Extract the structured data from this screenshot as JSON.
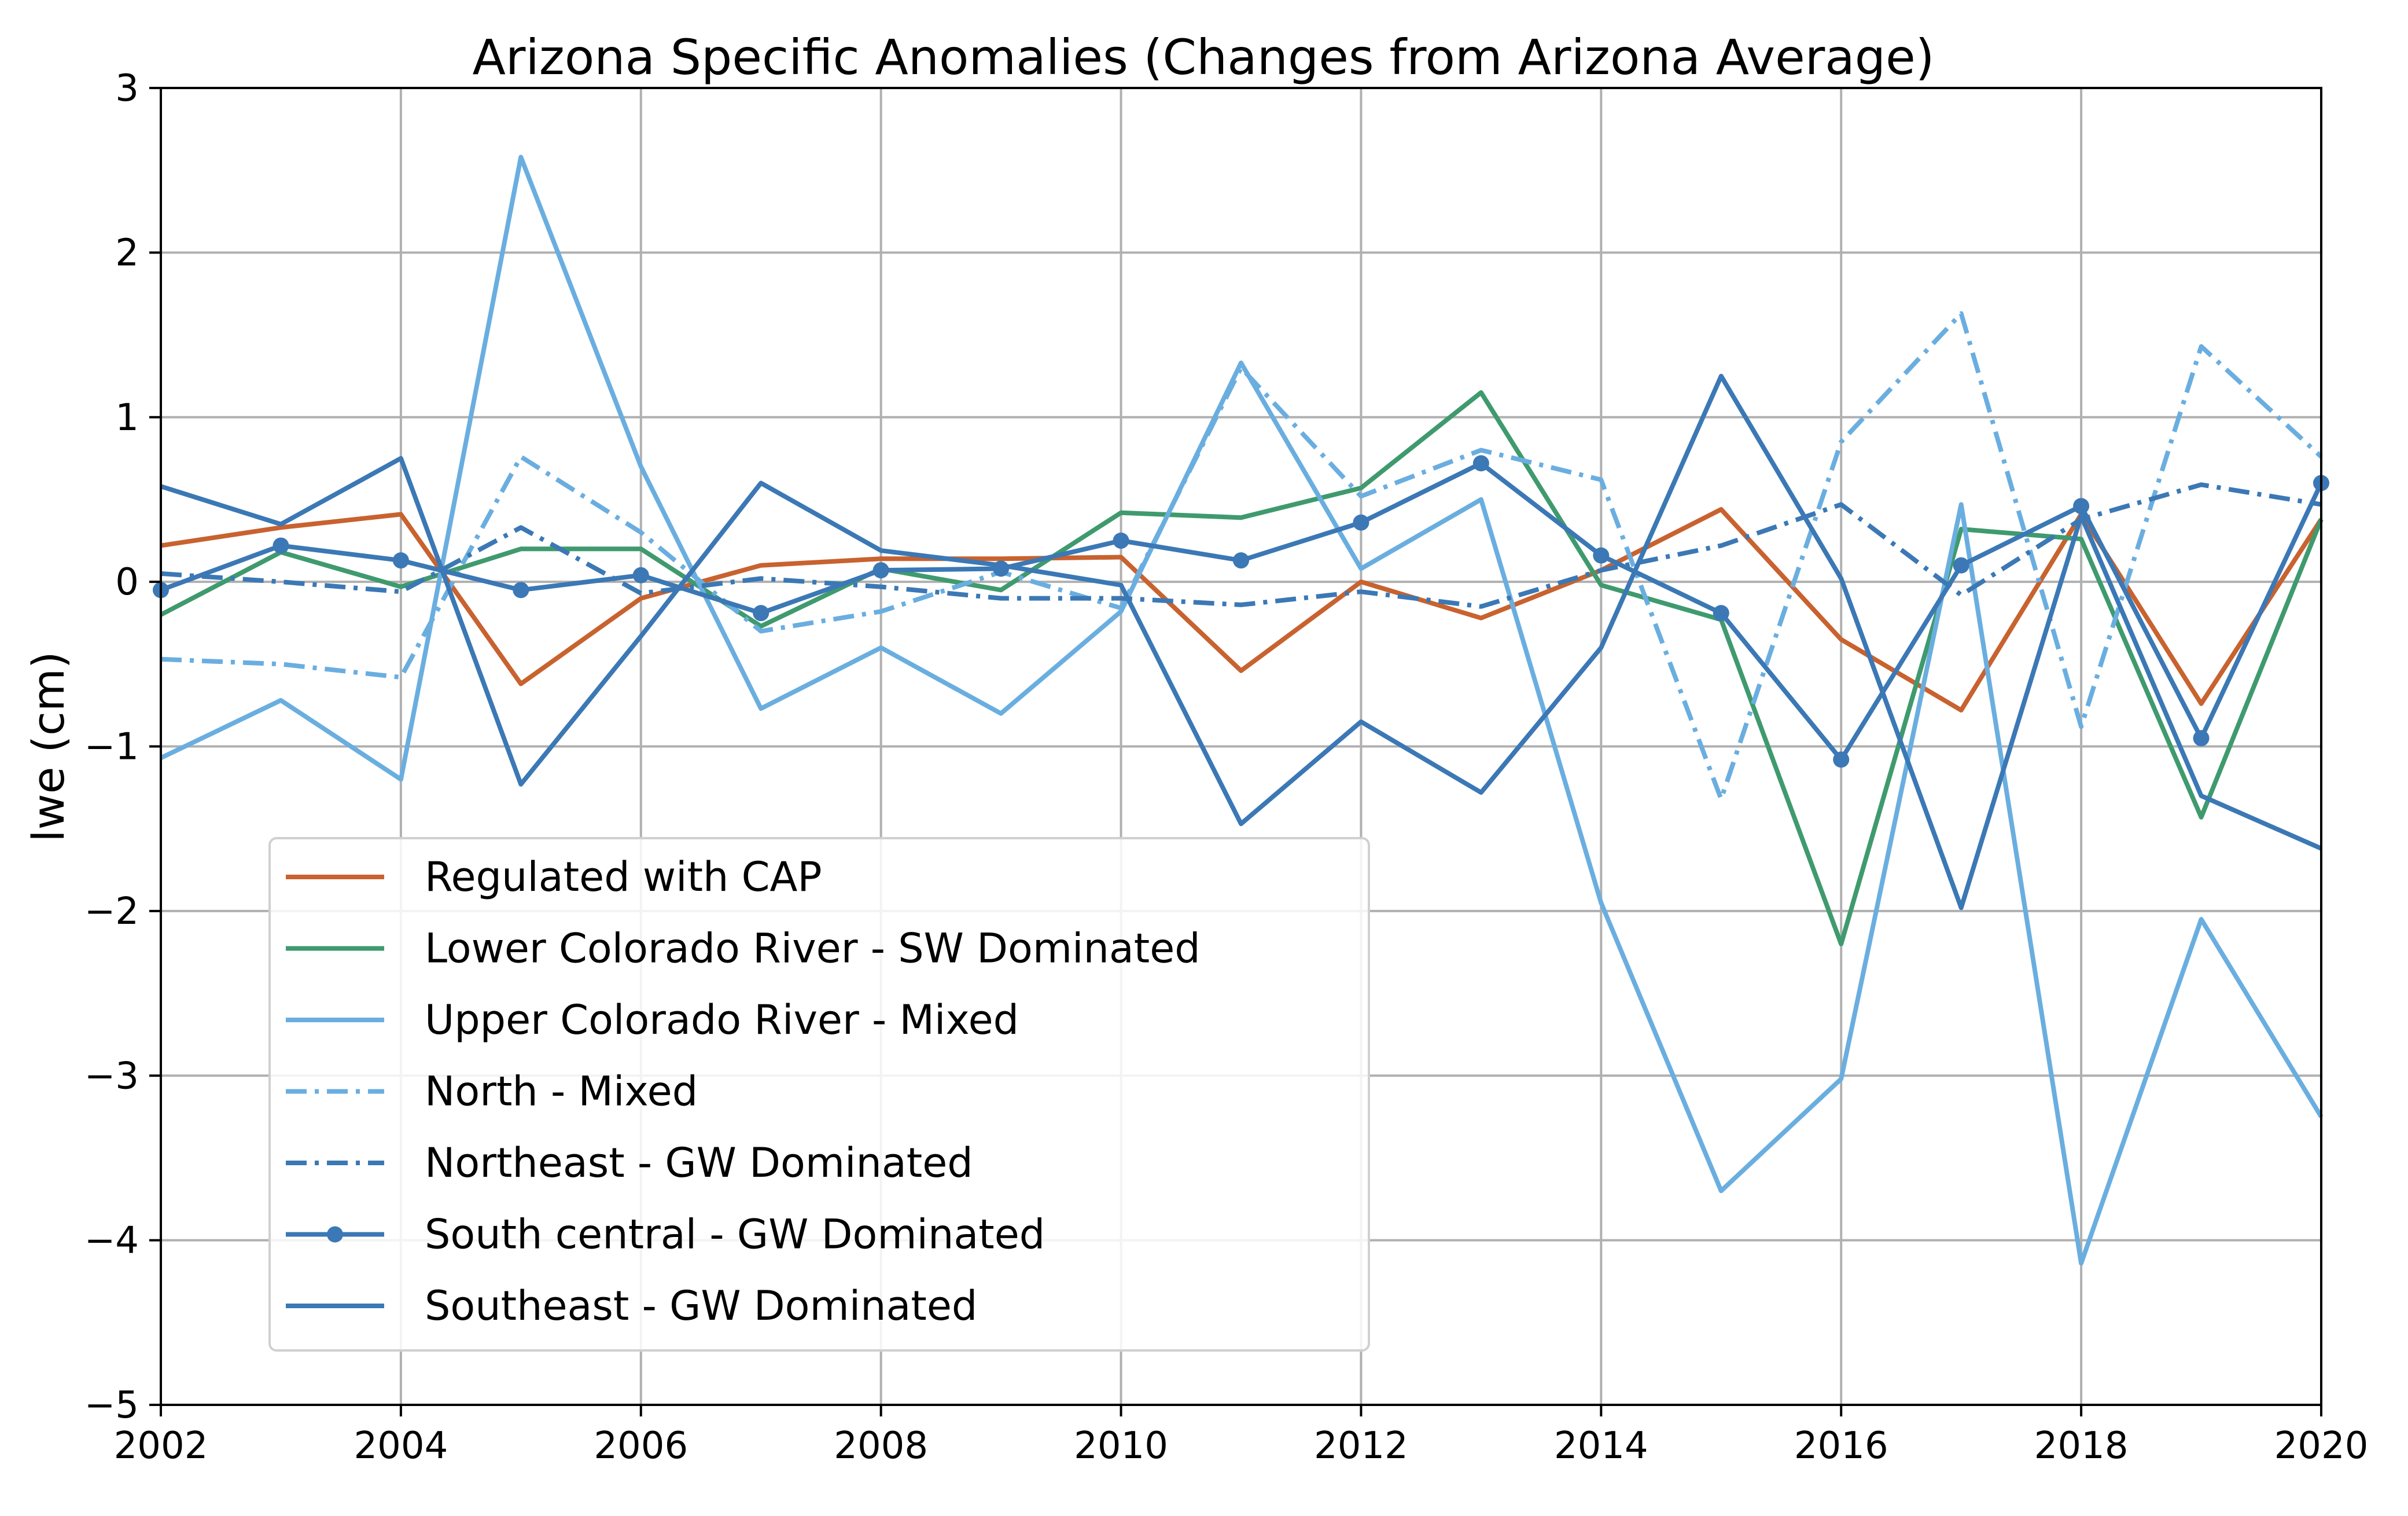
{
  "chart_data": {
    "type": "line",
    "title": "Arizona Specific Anomalies (Changes from Arizona Average)",
    "xlabel": "",
    "ylabel": "lwe (cm)",
    "xlim": [
      2002,
      2020
    ],
    "ylim": [
      -5,
      3
    ],
    "x_ticks": [
      2002,
      2004,
      2006,
      2008,
      2010,
      2012,
      2014,
      2016,
      2018,
      2020
    ],
    "x_tick_labels": [
      "2002",
      "2004",
      "2006",
      "2008",
      "2010",
      "2012",
      "2014",
      "2016",
      "2018",
      "2020"
    ],
    "y_ticks": [
      3,
      2,
      1,
      0,
      -1,
      -2,
      -3,
      -4,
      -5
    ],
    "y_tick_labels": [
      "3",
      "2",
      "1",
      "0",
      "−1",
      "−2",
      "−3",
      "−4",
      "−5"
    ],
    "grid": true,
    "legend_position": "lower-left",
    "x": [
      2002,
      2003,
      2004,
      2005,
      2006,
      2007,
      2008,
      2009,
      2010,
      2011,
      2012,
      2013,
      2014,
      2015,
      2016,
      2017,
      2018,
      2019,
      2020
    ],
    "series": [
      {
        "name": "Regulated with CAP",
        "color": "#c8622f",
        "style": "solid",
        "marker": false,
        "values": [
          0.22,
          0.33,
          0.41,
          -0.62,
          -0.1,
          0.1,
          0.14,
          0.14,
          0.15,
          -0.54,
          0.0,
          -0.22,
          0.07,
          0.44,
          -0.35,
          -0.78,
          0.41,
          -0.74,
          0.38
        ]
      },
      {
        "name": "Lower Colorado River - SW Dominated",
        "color": "#3f9a6e",
        "style": "solid",
        "marker": false,
        "values": [
          -0.2,
          0.18,
          -0.03,
          0.2,
          0.2,
          -0.27,
          0.08,
          -0.05,
          0.42,
          0.39,
          0.57,
          1.15,
          -0.02,
          -0.23,
          -2.2,
          0.32,
          0.26,
          -1.43,
          0.38
        ]
      },
      {
        "name": "Upper Colorado River - Mixed",
        "color": "#6aaee0",
        "style": "solid",
        "marker": false,
        "values": [
          -1.07,
          -0.72,
          -1.2,
          2.58,
          0.7,
          -0.77,
          -0.4,
          -0.8,
          -0.18,
          1.33,
          0.08,
          0.5,
          -1.95,
          -3.7,
          -3.02,
          0.47,
          -4.14,
          -2.05,
          -3.25
        ]
      },
      {
        "name": "North - Mixed",
        "color": "#6aaee0",
        "style": "dashdot",
        "marker": false,
        "values": [
          -0.47,
          -0.5,
          -0.58,
          0.76,
          0.3,
          -0.3,
          -0.18,
          0.06,
          -0.16,
          1.3,
          0.52,
          0.8,
          0.62,
          -1.32,
          0.85,
          1.63,
          -0.88,
          1.43,
          0.76
        ]
      },
      {
        "name": "Northeast - GW Dominated",
        "color": "#3b78b5",
        "style": "dashdot",
        "marker": false,
        "values": [
          0.05,
          0.0,
          -0.06,
          0.33,
          -0.07,
          0.02,
          -0.03,
          -0.1,
          -0.1,
          -0.14,
          -0.06,
          -0.15,
          0.07,
          0.22,
          0.47,
          -0.08,
          0.38,
          0.59,
          0.47
        ]
      },
      {
        "name": "South central - GW Dominated",
        "color": "#3b78b5",
        "style": "solid",
        "marker": true,
        "values": [
          -0.05,
          0.22,
          0.13,
          -0.05,
          0.04,
          -0.19,
          0.07,
          0.08,
          0.25,
          0.13,
          0.36,
          0.72,
          0.16,
          -0.19,
          -1.08,
          0.1,
          0.46,
          -0.95,
          0.6
        ]
      },
      {
        "name": "Southeast - GW Dominated",
        "color": "#3b78b5",
        "style": "solid",
        "marker": false,
        "values": [
          0.58,
          0.35,
          0.75,
          -1.23,
          -0.33,
          0.6,
          0.19,
          0.1,
          -0.02,
          -1.47,
          -0.85,
          -1.28,
          -0.4,
          1.25,
          0.02,
          -1.98,
          0.4,
          -1.3,
          -1.62
        ]
      }
    ]
  }
}
